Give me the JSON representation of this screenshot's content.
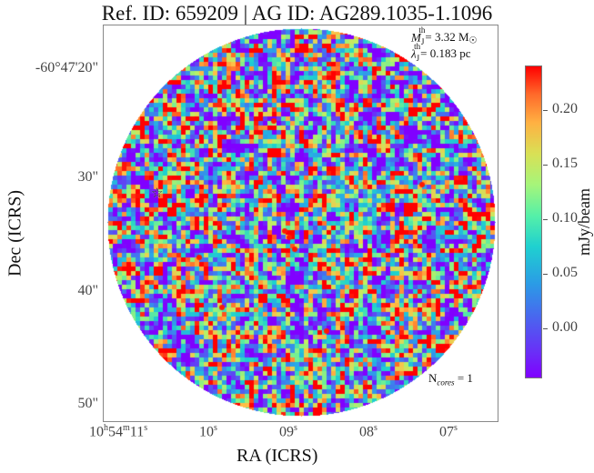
{
  "title": "Ref. ID: 659209 | AG ID: AG289.1035-1.1096",
  "y_axis": {
    "label": "Dec (ICRS)",
    "ticks": [
      "-60°47'20\"",
      "30\"",
      "40\"",
      "50\""
    ]
  },
  "x_axis": {
    "label": "RA (ICRS)",
    "ticks": [
      {
        "main": "10",
        "h": "h",
        "m_val": "54",
        "m": "m",
        "s_val": "11",
        "s": "s"
      },
      {
        "main": "10",
        "s": "s"
      },
      {
        "main": "09",
        "s": "s"
      },
      {
        "main": "08",
        "s": "s"
      },
      {
        "main": "07",
        "s": "s"
      }
    ]
  },
  "annotations": {
    "mass_symbol": "M",
    "mass_sub": "J",
    "mass_sup": "th",
    "mass_value": "= 3.32 M",
    "mass_unit_symbol": "☉",
    "length_symbol": "λ",
    "length_sub": "J",
    "length_sup": "th",
    "length_value": "= 0.183 pc",
    "ncores_prefix": "N",
    "ncores_sub": "cores",
    "ncores_value": " = 1"
  },
  "colorbar": {
    "unit": "mJy/beam",
    "ticks": [
      "0.20",
      "0.15",
      "0.10",
      "0.05",
      "0.00"
    ],
    "tick_values": [
      0.2,
      0.15,
      0.1,
      0.05,
      0.0
    ],
    "vmin": -0.045,
    "vmax": 0.24,
    "colormap": "rainbow",
    "colors": [
      "#8000ff",
      "#2b9be6",
      "#1fd0d0",
      "#a6f57a",
      "#ffb042",
      "#ff0000"
    ]
  },
  "marker": {
    "symbol": "☆",
    "name": "core-star"
  }
}
